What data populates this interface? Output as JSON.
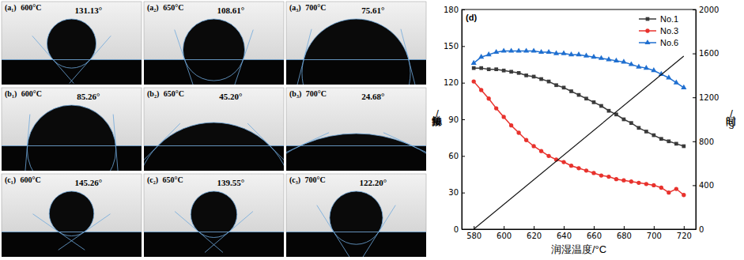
{
  "panels": [
    {
      "label": "(a₁)",
      "temp": "600°C",
      "angle": 131.13,
      "angle_label": "131.13°"
    },
    {
      "label": "(a₂)",
      "temp": "650°C",
      "angle": 108.61,
      "angle_label": "108.61°"
    },
    {
      "label": "(a₃)",
      "temp": "700°C",
      "angle": 75.61,
      "angle_label": "75.61°"
    },
    {
      "label": "(b₁)",
      "temp": "600°C",
      "angle": 85.26,
      "angle_label": "85.26°"
    },
    {
      "label": "(b₂)",
      "temp": "650°C",
      "angle": 45.2,
      "angle_label": "45.20°"
    },
    {
      "label": "(b₃)",
      "temp": "700°C",
      "angle": 24.68,
      "angle_label": "24.68°"
    },
    {
      "label": "(c₁)",
      "temp": "600°C",
      "angle": 145.26,
      "angle_label": "145.26°"
    },
    {
      "label": "(c₂)",
      "temp": "650°C",
      "angle": 139.55,
      "angle_label": "139.55°"
    },
    {
      "label": "(c₃)",
      "temp": "700°C",
      "angle": 122.2,
      "angle_label": "122.20°"
    }
  ],
  "chart_data": {
    "type": "line",
    "title": "(d)",
    "x_label": "润湿温度/°C",
    "y_label": "接触角/°",
    "y2_label": "时间/s",
    "x": [
      580,
      585,
      590,
      595,
      600,
      605,
      610,
      615,
      620,
      625,
      630,
      635,
      640,
      645,
      650,
      655,
      660,
      665,
      670,
      675,
      680,
      685,
      690,
      695,
      700,
      705,
      710,
      715,
      720
    ],
    "xlim": [
      572,
      728
    ],
    "xticks": [
      580,
      600,
      620,
      640,
      660,
      680,
      700,
      720
    ],
    "ylim": [
      0,
      180
    ],
    "yticks": [
      0,
      30,
      60,
      90,
      120,
      150,
      180
    ],
    "y2lim": [
      0,
      2000
    ],
    "y2ticks": [
      0,
      400,
      800,
      1200,
      1600,
      2000
    ],
    "legend": "upper right",
    "series": [
      {
        "name": "No.1",
        "color": "#3a3a3a",
        "marker": "square",
        "values": [
          132,
          132,
          131,
          131,
          130,
          129,
          128,
          126,
          125,
          123,
          121,
          118,
          116,
          113,
          110,
          107,
          104,
          101,
          97,
          94,
          90,
          87,
          83,
          80,
          77,
          74,
          72,
          70,
          68
        ]
      },
      {
        "name": "No.3",
        "color": "#e8322d",
        "marker": "circle",
        "values": [
          121,
          114,
          107,
          99,
          92,
          85,
          79,
          73,
          68,
          64,
          60,
          57,
          55,
          52,
          50,
          48,
          46,
          44,
          43,
          41,
          40,
          39,
          38,
          37,
          36,
          34,
          30,
          33,
          28
        ]
      },
      {
        "name": "No.6",
        "color": "#1f6fd0",
        "marker": "triangle",
        "values": [
          136,
          141,
          143,
          145,
          146,
          146,
          146,
          146,
          146,
          145,
          145,
          144,
          144,
          143,
          143,
          142,
          141,
          140,
          139,
          138,
          137,
          135,
          133,
          132,
          130,
          127,
          124,
          120,
          116
        ]
      },
      {
        "color": "#111111",
        "axis": "y2",
        "marker": "none",
        "x": [
          580,
          720
        ],
        "values": [
          0,
          1575
        ]
      }
    ]
  }
}
